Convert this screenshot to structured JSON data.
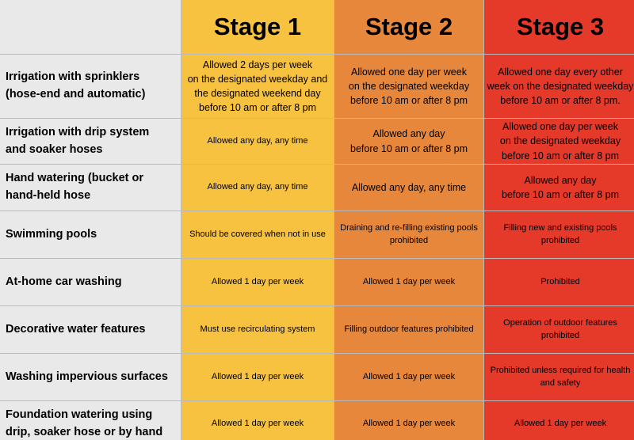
{
  "table": {
    "header": [
      "Stage 1",
      "Stage 2",
      "Stage 3"
    ],
    "rows": [
      {
        "label": [
          "Irrigation with sprinklers",
          "(hose-end and automatic)"
        ],
        "cells": [
          [
            "Allowed 2 days per week",
            "on the designated weekday and",
            "the designated weekend day",
            "before 10 am or after 8 pm"
          ],
          [
            "Allowed one day per week",
            "on the designated weekday",
            "before 10 am or after 8 pm"
          ],
          [
            "Allowed one day every other",
            "week on the designated weekday",
            "before 10 am or after 8 pm."
          ]
        ]
      },
      {
        "label": [
          "Irrigation with drip system",
          "and soaker hoses"
        ],
        "cells": [
          [
            "Allowed any day, any time"
          ],
          [
            "Allowed any day",
            "before 10 am or after 8 pm"
          ],
          [
            "Allowed one day per week",
            "on the designated weekday",
            "before 10 am or after 8 pm"
          ]
        ]
      },
      {
        "label": [
          "Hand watering (bucket or",
          "hand-held hose"
        ],
        "cells": [
          [
            "Allowed any day, any time"
          ],
          [
            "Allowed any day, any time"
          ],
          [
            "Allowed any day",
            "before 10 am or after 8 pm"
          ]
        ]
      },
      {
        "label": [
          "Swimming pools"
        ],
        "cells": [
          [
            "Should be covered when not in use"
          ],
          [
            "Draining and re-filling existing pools",
            "prohibited"
          ],
          [
            "Filling new and existing pools",
            "prohibited"
          ]
        ]
      },
      {
        "label": [
          "At-home car washing"
        ],
        "cells": [
          [
            "Allowed 1 day per week"
          ],
          [
            "Allowed 1 day per week"
          ],
          [
            "Prohibited"
          ]
        ]
      },
      {
        "label": [
          "Decorative water features"
        ],
        "cells": [
          [
            "Must use recirculating system"
          ],
          [
            "Filling outdoor features prohibited"
          ],
          [
            "Operation of outdoor features",
            "prohibited"
          ]
        ]
      },
      {
        "label": [
          "Washing impervious surfaces"
        ],
        "cells": [
          [
            "Allowed 1 day per week"
          ],
          [
            "Allowed 1 day per week"
          ],
          [
            "Prohibited unless required for health",
            "and safety"
          ]
        ]
      },
      {
        "label": [
          "Foundation watering using",
          "drip, soaker hose or by hand"
        ],
        "cells": [
          [
            "Allowed 1 day per week"
          ],
          [
            "Allowed 1 day per week"
          ],
          [
            "Allowed 1 day per week"
          ]
        ]
      }
    ]
  }
}
